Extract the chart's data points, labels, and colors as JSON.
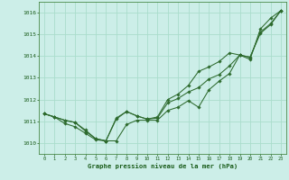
{
  "background_color": "#cceee8",
  "grid_color": "#aaddcc",
  "line_color": "#2d6a2d",
  "marker_color": "#2d6a2d",
  "xlabel": "Graphe pression niveau de la mer (hPa)",
  "xlabel_color": "#1a5c1a",
  "tick_label_color": "#1a5c1a",
  "ylim": [
    1009.5,
    1016.5
  ],
  "xlim": [
    -0.5,
    23.5
  ],
  "yticks": [
    1010,
    1011,
    1012,
    1013,
    1014,
    1015,
    1016
  ],
  "xticks": [
    0,
    1,
    2,
    3,
    4,
    5,
    6,
    7,
    8,
    9,
    10,
    11,
    12,
    13,
    14,
    15,
    16,
    17,
    18,
    19,
    20,
    21,
    22,
    23
  ],
  "line1_x": [
    0,
    1,
    2,
    3,
    4,
    5,
    6,
    7,
    8,
    9,
    10,
    11,
    12,
    13,
    14,
    15,
    16,
    17,
    18,
    19,
    20,
    21,
    22,
    23
  ],
  "line1_y": [
    1011.35,
    1011.2,
    1010.9,
    1010.75,
    1010.45,
    1010.15,
    1010.1,
    1010.1,
    1010.85,
    1011.05,
    1011.05,
    1011.05,
    1011.5,
    1011.65,
    1011.95,
    1011.65,
    1012.45,
    1012.85,
    1013.2,
    1014.05,
    1013.85,
    1015.25,
    1015.75,
    1016.1
  ],
  "line2_x": [
    0,
    1,
    2,
    3,
    4,
    5,
    6,
    7,
    8,
    9,
    10,
    11,
    12,
    13,
    14,
    15,
    16,
    17,
    18,
    19,
    20,
    21,
    22,
    23
  ],
  "line2_y": [
    1011.35,
    1011.2,
    1011.05,
    1010.95,
    1010.55,
    1010.2,
    1010.1,
    1011.15,
    1011.45,
    1011.25,
    1011.1,
    1011.15,
    1011.85,
    1012.05,
    1012.35,
    1012.55,
    1012.95,
    1013.15,
    1013.55,
    1014.05,
    1013.95,
    1015.05,
    1015.45,
    1016.1
  ],
  "line3_x": [
    0,
    1,
    2,
    3,
    4,
    5,
    6,
    7,
    8,
    9,
    10,
    11,
    12,
    13,
    14,
    15,
    16,
    17,
    18,
    19,
    20,
    21,
    22,
    23
  ],
  "line3_y": [
    1011.35,
    1011.2,
    1011.05,
    1010.95,
    1010.6,
    1010.2,
    1010.1,
    1011.1,
    1011.45,
    1011.25,
    1011.1,
    1011.2,
    1012.0,
    1012.25,
    1012.65,
    1013.3,
    1013.5,
    1013.75,
    1014.15,
    1014.05,
    1013.95,
    1015.1,
    1015.5,
    1016.1
  ]
}
